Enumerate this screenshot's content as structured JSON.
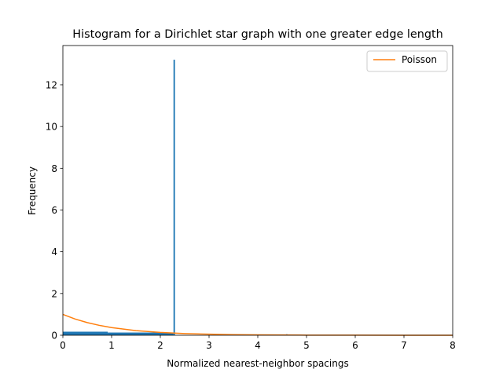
{
  "chart_data": {
    "type": "bar",
    "title": "Histogram for a Dirichlet star graph with one greater edge length",
    "xlabel": "Normalized nearest-neighbor spacings",
    "ylabel": "Frequency",
    "xlim": [
      0,
      8
    ],
    "ylim": [
      0,
      13.88
    ],
    "xticks": [
      "0",
      "1",
      "2",
      "3",
      "4",
      "5",
      "6",
      "7",
      "8"
    ],
    "yticks": [
      "0",
      "2",
      "4",
      "6",
      "8",
      "10",
      "12"
    ],
    "grid": false,
    "legend_position": "top-right",
    "bar_color": "#1f77b4",
    "histogram": {
      "bins": [
        {
          "x0": 0.0,
          "x1": 0.92,
          "value": 0.17
        },
        {
          "x0": 0.92,
          "x1": 2.27,
          "value": 0.13
        },
        {
          "x0": 2.27,
          "x1": 2.3,
          "value": 13.2
        },
        {
          "x0": 4.58,
          "x1": 4.61,
          "value": 0.05
        }
      ]
    },
    "series": [
      {
        "name": "Poisson",
        "type": "line",
        "color": "#ff7f0e",
        "x": [
          0,
          0.25,
          0.5,
          0.75,
          1,
          1.5,
          2,
          2.5,
          3,
          3.5,
          4,
          5,
          6,
          7,
          8
        ],
        "y": [
          1.0,
          0.7788,
          0.6065,
          0.4724,
          0.3679,
          0.2231,
          0.1353,
          0.0821,
          0.0498,
          0.0302,
          0.0183,
          0.0067,
          0.0025,
          0.0009,
          0.0003
        ]
      }
    ]
  }
}
